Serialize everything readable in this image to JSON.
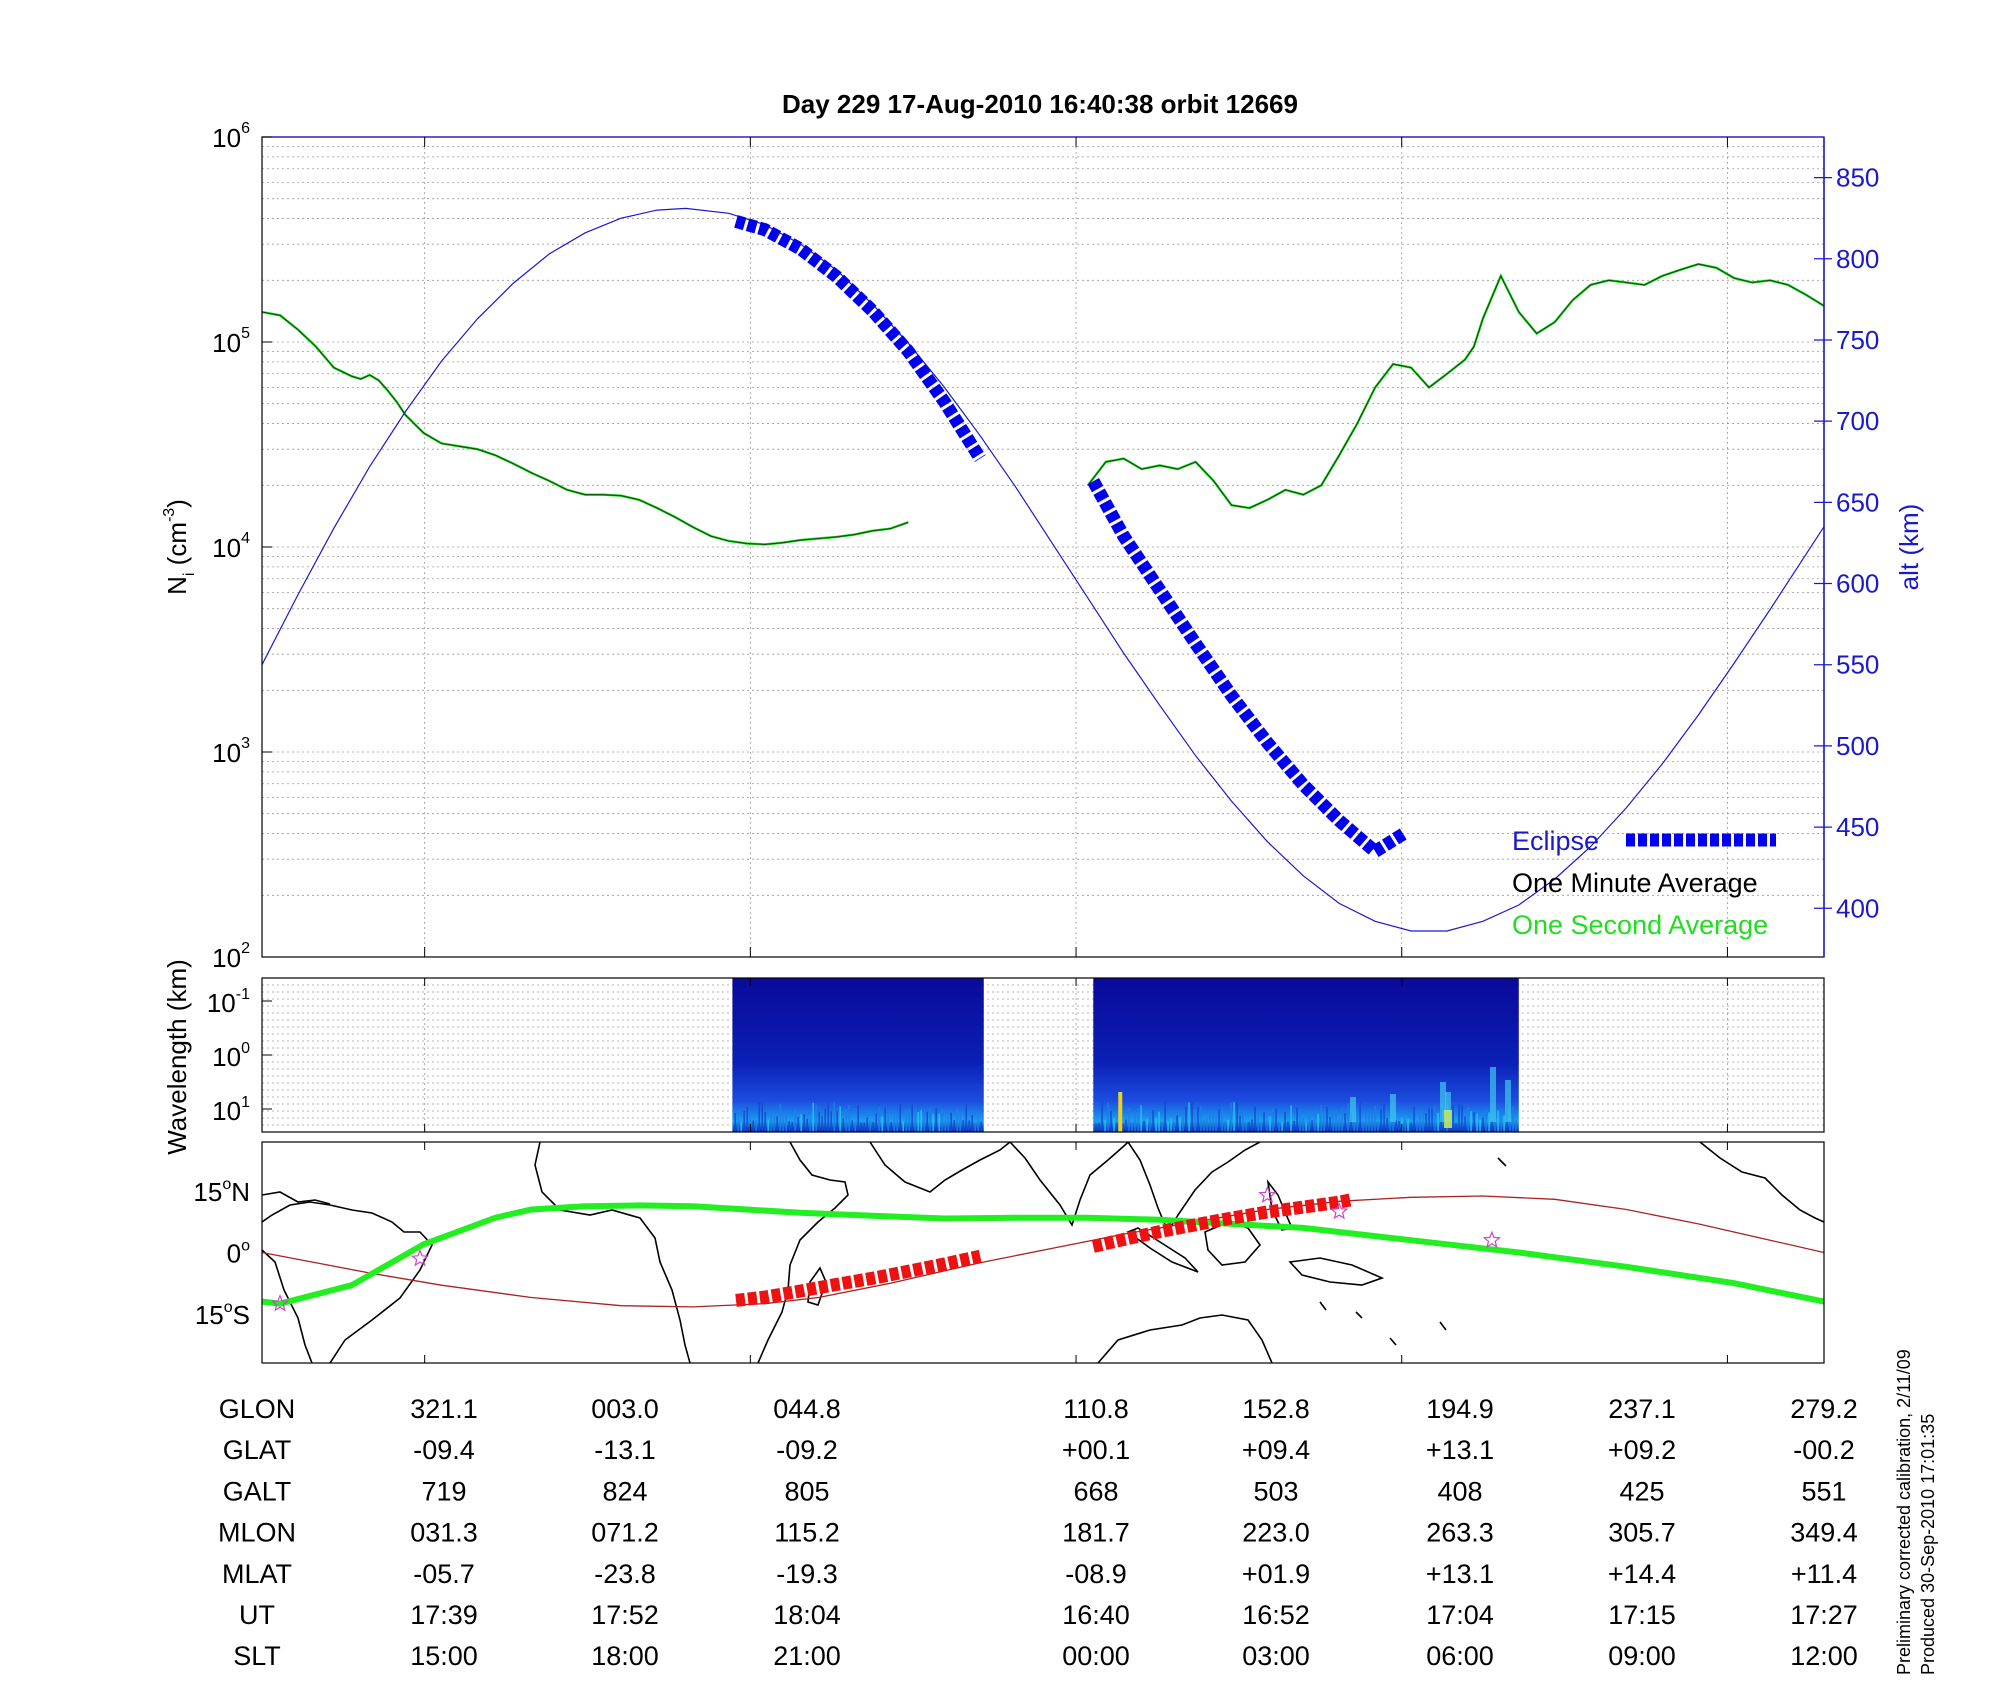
{
  "title": "Day 229  17-Aug-2010 16:40:38   orbit 12669",
  "colors": {
    "eclipse": "#0000ee",
    "one_minute": "#000000",
    "one_second": "#22dd22",
    "altitude": "#1a1acc",
    "track_red": "#ee1111",
    "orbit_line": "#aa2222",
    "magnetic_eq": "#22ee22",
    "stars": "#cc44cc"
  },
  "chart_data": [
    {
      "type": "line",
      "panel": "density",
      "ylabel": "N",
      "ylabel_sub": "i",
      "ylabel_unit": " (cm",
      "ylabel_unit_exp": "-3",
      "ylabel_unit_end": ")",
      "y2label": "alt (km)",
      "yscale": "log",
      "ylim": [
        100,
        1000000
      ],
      "y_ticks": [
        {
          "base": "10",
          "exp": "2"
        },
        {
          "base": "10",
          "exp": "3"
        },
        {
          "base": "10",
          "exp": "4"
        },
        {
          "base": "10",
          "exp": "5"
        },
        {
          "base": "10",
          "exp": "6"
        }
      ],
      "y2lim": [
        370,
        875
      ],
      "y2_ticks": [
        "400",
        "450",
        "500",
        "550",
        "600",
        "650",
        "700",
        "750",
        "800",
        "850"
      ],
      "grid": true,
      "legend_position": "bottom-right",
      "legend": [
        "Eclipse",
        "One Minute Average",
        "One Second Average"
      ],
      "series": [
        {
          "name": "One Minute Average",
          "segment": 1,
          "x": [
            0,
            10,
            20,
            30,
            40,
            50,
            55,
            60,
            65,
            70,
            75,
            80,
            90,
            100,
            110,
            120,
            130,
            140,
            150,
            160,
            170,
            180,
            190,
            200,
            210,
            220,
            230,
            240,
            250,
            260,
            270,
            280,
            290,
            300,
            310,
            320,
            330,
            340,
            350,
            360,
            370,
            380,
            390,
            400
          ],
          "values": [
            140000,
            135000,
            115000,
            95000,
            75000,
            68000,
            66000,
            69000,
            65000,
            58000,
            51000,
            44000,
            36000,
            32000,
            31000,
            30000,
            28000,
            25500,
            23000,
            21000,
            19000,
            18000,
            18000,
            17800,
            17000,
            15500,
            14000,
            12500,
            11300,
            10700,
            10400,
            10300,
            10500,
            10800,
            11000,
            11200,
            11500,
            12000,
            12300,
            13200,
            0,
            0,
            0,
            0
          ]
        },
        {
          "name": "One Minute Average",
          "segment": 2,
          "x": [
            460,
            470,
            480,
            490,
            500,
            510,
            520,
            530,
            540,
            550,
            560,
            570,
            580,
            590,
            600,
            610,
            620,
            630,
            640,
            650,
            660,
            670,
            675,
            680,
            690,
            700,
            710,
            720,
            730,
            740,
            750,
            760,
            770,
            780,
            790,
            800,
            810,
            820,
            830,
            840,
            850,
            860,
            870
          ],
          "values": [
            20000,
            26000,
            27000,
            24000,
            25000,
            24000,
            26000,
            21000,
            16000,
            15500,
            17000,
            19000,
            18000,
            20000,
            28000,
            40000,
            60000,
            78000,
            75000,
            60000,
            70000,
            82000,
            95000,
            130000,
            210000,
            140000,
            110000,
            125000,
            160000,
            190000,
            200000,
            195000,
            190000,
            210000,
            225000,
            240000,
            230000,
            205000,
            195000,
            200000,
            190000,
            170000,
            150000
          ]
        },
        {
          "name": "alt (km)",
          "x": [
            0,
            20,
            40,
            60,
            80,
            100,
            120,
            140,
            160,
            180,
            200,
            220,
            236,
            260,
            280,
            300,
            320,
            340,
            360,
            380,
            400,
            420,
            440,
            460,
            480,
            500,
            520,
            540,
            560,
            580,
            600,
            620,
            640,
            660,
            680,
            700,
            720,
            740,
            760,
            780,
            800,
            820,
            840,
            860,
            870
          ],
          "values": [
            550,
            593,
            634,
            672,
            706,
            737,
            763,
            785,
            803,
            816,
            825,
            830,
            831,
            828,
            821,
            809,
            793,
            772,
            748,
            721,
            691,
            659,
            625,
            591,
            557,
            525,
            494,
            466,
            441,
            420,
            403,
            392,
            386,
            386,
            392,
            402,
            418,
            438,
            462,
            489,
            519,
            551,
            584,
            618,
            635
          ]
        },
        {
          "name": "Eclipse",
          "segment": 1,
          "x": [
            264,
            280,
            300,
            320,
            340,
            360,
            380,
            400
          ],
          "values": [
            823,
            818,
            806,
            789,
            768,
            743,
            712,
            677
          ]
        },
        {
          "name": "Eclipse",
          "segment": 2,
          "x": [
            463,
            480,
            500,
            520,
            540,
            560,
            580,
            600,
            620,
            636
          ],
          "values": [
            663,
            629,
            596,
            563,
            531,
            502,
            476,
            454,
            435,
            446
          ]
        }
      ]
    },
    {
      "type": "heatmap",
      "panel": "spectrogram",
      "ylabel": "Wavelength (km)",
      "y_ticks": [
        {
          "base": "10",
          "exp": "-1"
        },
        {
          "base": "10",
          "exp": "0"
        },
        {
          "base": "10",
          "exp": "1"
        }
      ],
      "data_intervals": [
        [
          262,
          402
        ],
        [
          463,
          700
        ]
      ]
    },
    {
      "type": "line",
      "panel": "map",
      "y_ticks": [
        {
          "deg": "15",
          "dir": "N"
        },
        {
          "deg": "0",
          "dir": ""
        },
        {
          "deg": "15",
          "dir": "S"
        }
      ],
      "ylim": [
        -27,
        27
      ],
      "series": [
        {
          "name": "orbit track",
          "x": [
            0,
            60,
            100,
            150,
            200,
            240,
            280,
            310,
            350,
            400,
            440,
            480,
            520,
            560,
            600,
            640,
            680,
            720,
            760,
            800,
            840,
            870
          ],
          "values": [
            0,
            -5,
            -8,
            -11,
            -13,
            -13.3,
            -12.5,
            -11,
            -7.5,
            -2.5,
            1,
            4.5,
            7.5,
            10.5,
            12.5,
            13.5,
            13.8,
            13,
            10.5,
            7,
            3,
            0
          ]
        },
        {
          "name": "magnetic equator",
          "x": [
            0,
            10,
            50,
            90,
            130,
            150,
            180,
            210,
            240,
            270,
            300,
            340,
            380,
            420,
            460,
            500,
            540,
            580,
            620,
            660,
            700,
            760,
            820,
            870
          ],
          "values": [
            -12,
            -12.5,
            -8,
            2,
            8.5,
            10.5,
            11.3,
            11.5,
            11.3,
            10.5,
            9.7,
            9,
            8.3,
            8.5,
            8.5,
            8,
            7,
            6,
            4,
            2,
            0,
            -3.5,
            -7.5,
            -12
          ]
        },
        {
          "name": "eclipse track",
          "segment": 1,
          "x": [
            264,
            280,
            300,
            320,
            340,
            360,
            380,
            400
          ],
          "values": [
            -11.7,
            -10.9,
            -9.4,
            -7.8,
            -6.3,
            -4.6,
            -2.8,
            -0.9
          ]
        },
        {
          "name": "eclipse track",
          "segment": 2,
          "x": [
            463,
            480,
            500,
            520,
            540,
            560,
            580,
            600,
            607
          ],
          "values": [
            1.5,
            3.2,
            5.1,
            6.8,
            8.4,
            9.9,
            11.1,
            12.3,
            12.9
          ]
        },
        {
          "name": "stars",
          "x": [
            10,
            88,
            560,
            600,
            685
          ],
          "values": [
            -12.5,
            -1.5,
            14,
            10,
            3
          ]
        }
      ]
    }
  ],
  "table": {
    "rows": [
      {
        "label": "GLON",
        "values": [
          "321.1",
          "003.0",
          "044.8",
          "110.8",
          "152.8",
          "194.9",
          "237.1",
          "279.2"
        ]
      },
      {
        "label": "GLAT",
        "values": [
          "-09.4",
          "-13.1",
          "-09.2",
          "+00.1",
          "+09.4",
          "+13.1",
          "+09.2",
          "-00.2"
        ]
      },
      {
        "label": "GALT",
        "values": [
          "719",
          "824",
          "805",
          "668",
          "503",
          "408",
          "425",
          "551"
        ]
      },
      {
        "label": "MLON",
        "values": [
          "031.3",
          "071.2",
          "115.2",
          "181.7",
          "223.0",
          "263.3",
          "305.7",
          "349.4"
        ]
      },
      {
        "label": "MLAT",
        "values": [
          "-05.7",
          "-23.8",
          "-19.3",
          "-08.9",
          "+01.9",
          "+13.1",
          "+14.4",
          "+11.4"
        ]
      },
      {
        "label": "UT",
        "values": [
          "17:39",
          "17:52",
          "18:04",
          "16:40",
          "16:52",
          "17:04",
          "17:15",
          "17:27"
        ]
      },
      {
        "label": "SLT",
        "values": [
          "15:00",
          "18:00",
          "21:00",
          "00:00",
          "03:00",
          "06:00",
          "09:00",
          "12:00"
        ]
      }
    ]
  },
  "footer": {
    "line1": "Preliminary corrected calibration, 2/11/09",
    "line2": "Produced 30-Sep-2010 17:01:35"
  }
}
